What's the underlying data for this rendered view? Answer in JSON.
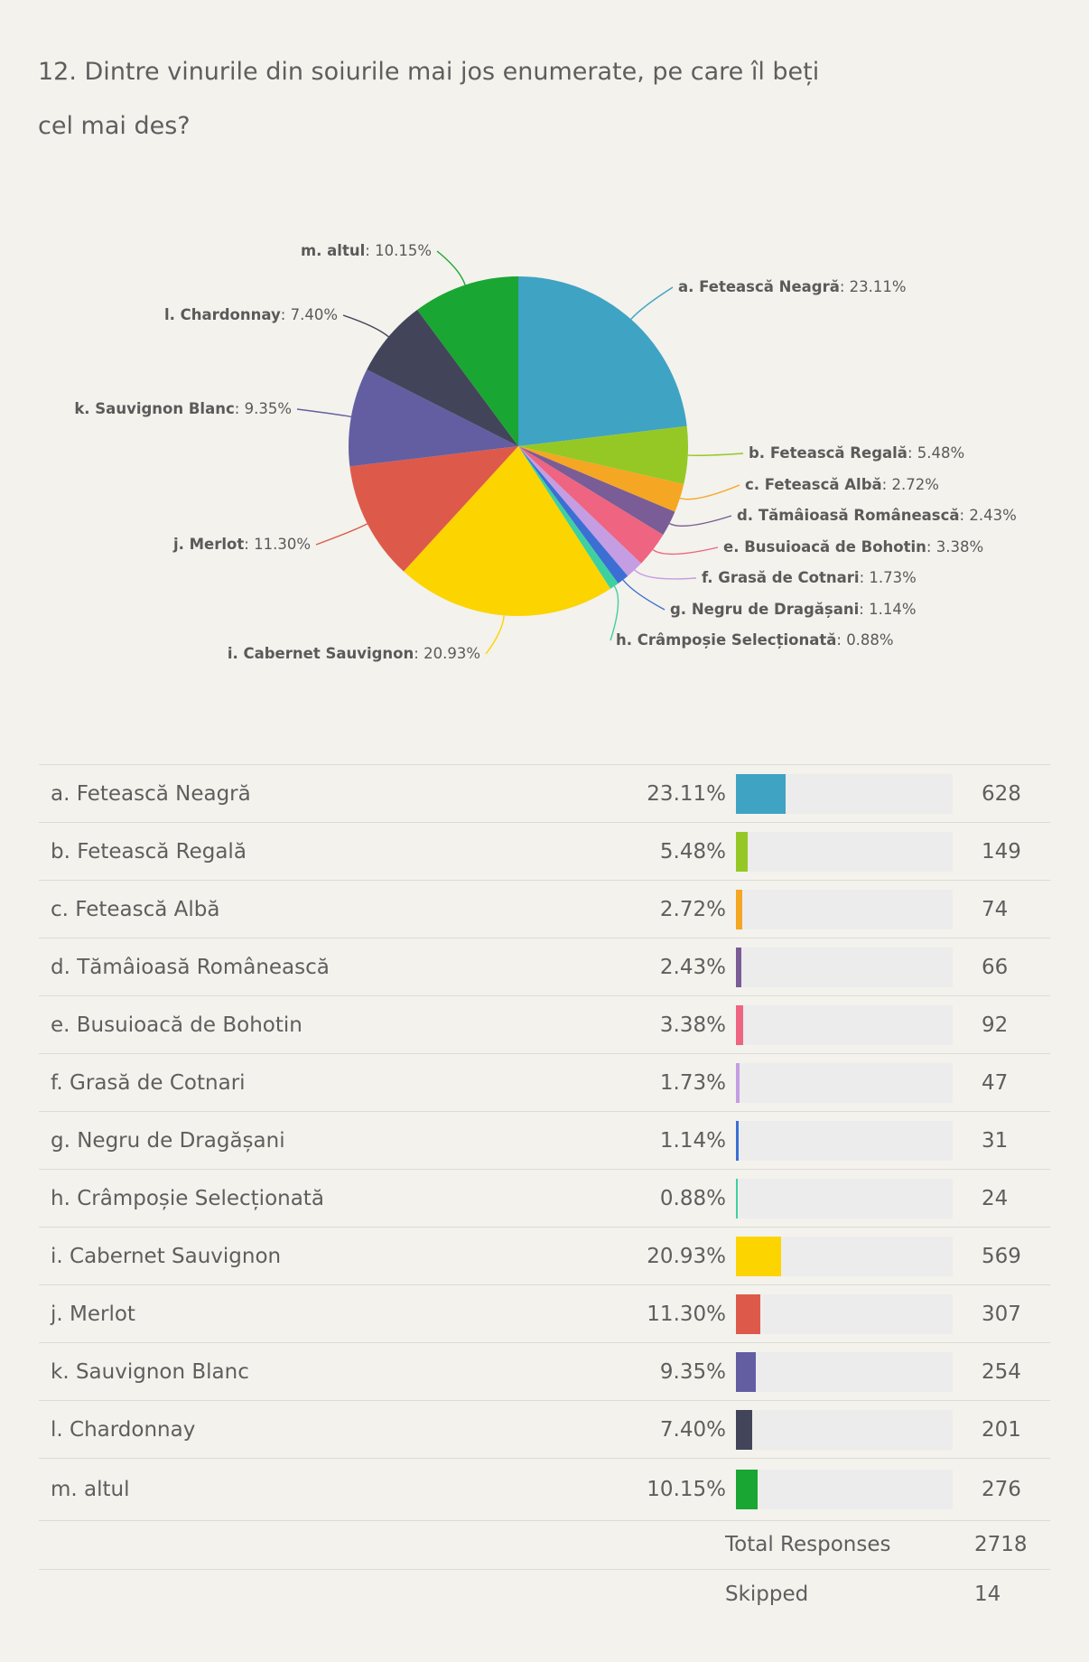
{
  "question": "12. Dintre vinurile din soiurile mai jos enumerate, pe care îl beți cel mai des?",
  "chart_data": {
    "type": "pie",
    "title": "12. Dintre vinurile din soiurile mai jos enumerate, pe care îl beți cel mai des?",
    "series": [
      {
        "name": "a. Fetească Neagră",
        "label": "a. Fetească Neagră",
        "pct_text": "23.11%",
        "value": 23.11,
        "count": 628,
        "color": "#3fa3c4"
      },
      {
        "name": "b. Fetească Regală",
        "label": "b. Fetească Regală",
        "pct_text": "5.48%",
        "value": 5.48,
        "count": 149,
        "color": "#95c825"
      },
      {
        "name": "c. Fetească Albă",
        "label": "c. Fetească Albă",
        "pct_text": "2.72%",
        "value": 2.72,
        "count": 74,
        "color": "#f5a623"
      },
      {
        "name": "d. Tămâioasă Românească",
        "label": "d. Tămâioasă Românească",
        "pct_text": "2.43%",
        "value": 2.43,
        "count": 66,
        "color": "#7a5c96"
      },
      {
        "name": "e. Busuioacă de Bohotin",
        "label": "e. Busuioacă de Bohotin",
        "pct_text": "3.38%",
        "value": 3.38,
        "count": 92,
        "color": "#ee6481"
      },
      {
        "name": "f. Grasă de Cotnari",
        "label": "f. Grasă de Cotnari",
        "pct_text": "1.73%",
        "value": 1.73,
        "count": 47,
        "color": "#c49de3"
      },
      {
        "name": "g. Negru de Dragășani",
        "label": "g. Negru de Dragășani",
        "pct_text": "1.14%",
        "value": 1.14,
        "count": 31,
        "color": "#3b6fd4"
      },
      {
        "name": "h. Crâmpoșie Selecționată",
        "label": "h. Crâmpoșie Selecționată",
        "pct_text": "0.88%",
        "value": 0.88,
        "count": 24,
        "color": "#3fd0a0"
      },
      {
        "name": "i. Cabernet Sauvignon",
        "label": "i. Cabernet Sauvignon",
        "pct_text": "20.93%",
        "value": 20.93,
        "count": 569,
        "color": "#fcd400"
      },
      {
        "name": "j. Merlot",
        "label": "j. Merlot",
        "pct_text": "11.30%",
        "value": 11.3,
        "count": 307,
        "color": "#dd5a4b"
      },
      {
        "name": "k. Sauvignon Blanc",
        "label": "k. Sauvignon Blanc",
        "pct_text": "9.35%",
        "value": 9.35,
        "count": 254,
        "color": "#635ea2"
      },
      {
        "name": "l. Chardonnay",
        "label": "l. Chardonnay",
        "pct_text": "7.40%",
        "value": 7.4,
        "count": 201,
        "color": "#424559"
      },
      {
        "name": "m. altul",
        "label": "m. altul",
        "pct_text": "10.15%",
        "value": 10.15,
        "count": 276,
        "color": "#19a632"
      }
    ]
  },
  "summary": {
    "total_label": "Total Responses",
    "total_value": "2718",
    "skipped_label": "Skipped",
    "skipped_value": "14"
  }
}
